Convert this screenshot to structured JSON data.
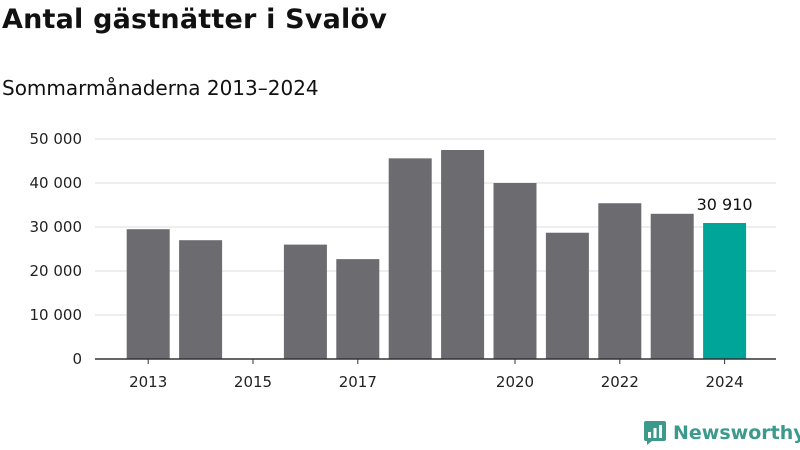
{
  "brand": {
    "name": "Newsworthy",
    "color": "#3c9a8c"
  },
  "chart_data": {
    "type": "bar",
    "title": "Antal gästnätter i Svalöv",
    "subtitle": "Sommarmånaderna 2013–2024",
    "xlabel": "",
    "ylabel": "",
    "categories": [
      "2013",
      "2014",
      "2015",
      "2016",
      "2017",
      "2018",
      "2019",
      "2020",
      "2021",
      "2022",
      "2023",
      "2024"
    ],
    "values": [
      29500,
      27000,
      null,
      26000,
      22700,
      45600,
      47500,
      40000,
      28700,
      35400,
      33000,
      30910
    ],
    "ylim": [
      0,
      50000
    ],
    "yticks": [
      0,
      10000,
      20000,
      30000,
      40000,
      50000
    ],
    "ytick_labels": [
      "0",
      "10 000",
      "20 000",
      "30 000",
      "40 000",
      "50 000"
    ],
    "xtick_labels": [
      {
        "category": "2013",
        "label": "2013"
      },
      {
        "category": "2015",
        "label": "2015"
      },
      {
        "category": "2017",
        "label": "2017"
      },
      {
        "category": "2020",
        "label": "2020"
      },
      {
        "category": "2022",
        "label": "2022"
      },
      {
        "category": "2024",
        "label": "2024"
      }
    ],
    "annotations": [
      {
        "category": "2024",
        "text": "30 910"
      }
    ],
    "highlight_category": "2024",
    "colors": {
      "bar": "#6c6b70",
      "highlight": "#00a59a",
      "grid": "#dddddd",
      "axis": "#333333"
    },
    "grid": true,
    "legend": "none"
  }
}
